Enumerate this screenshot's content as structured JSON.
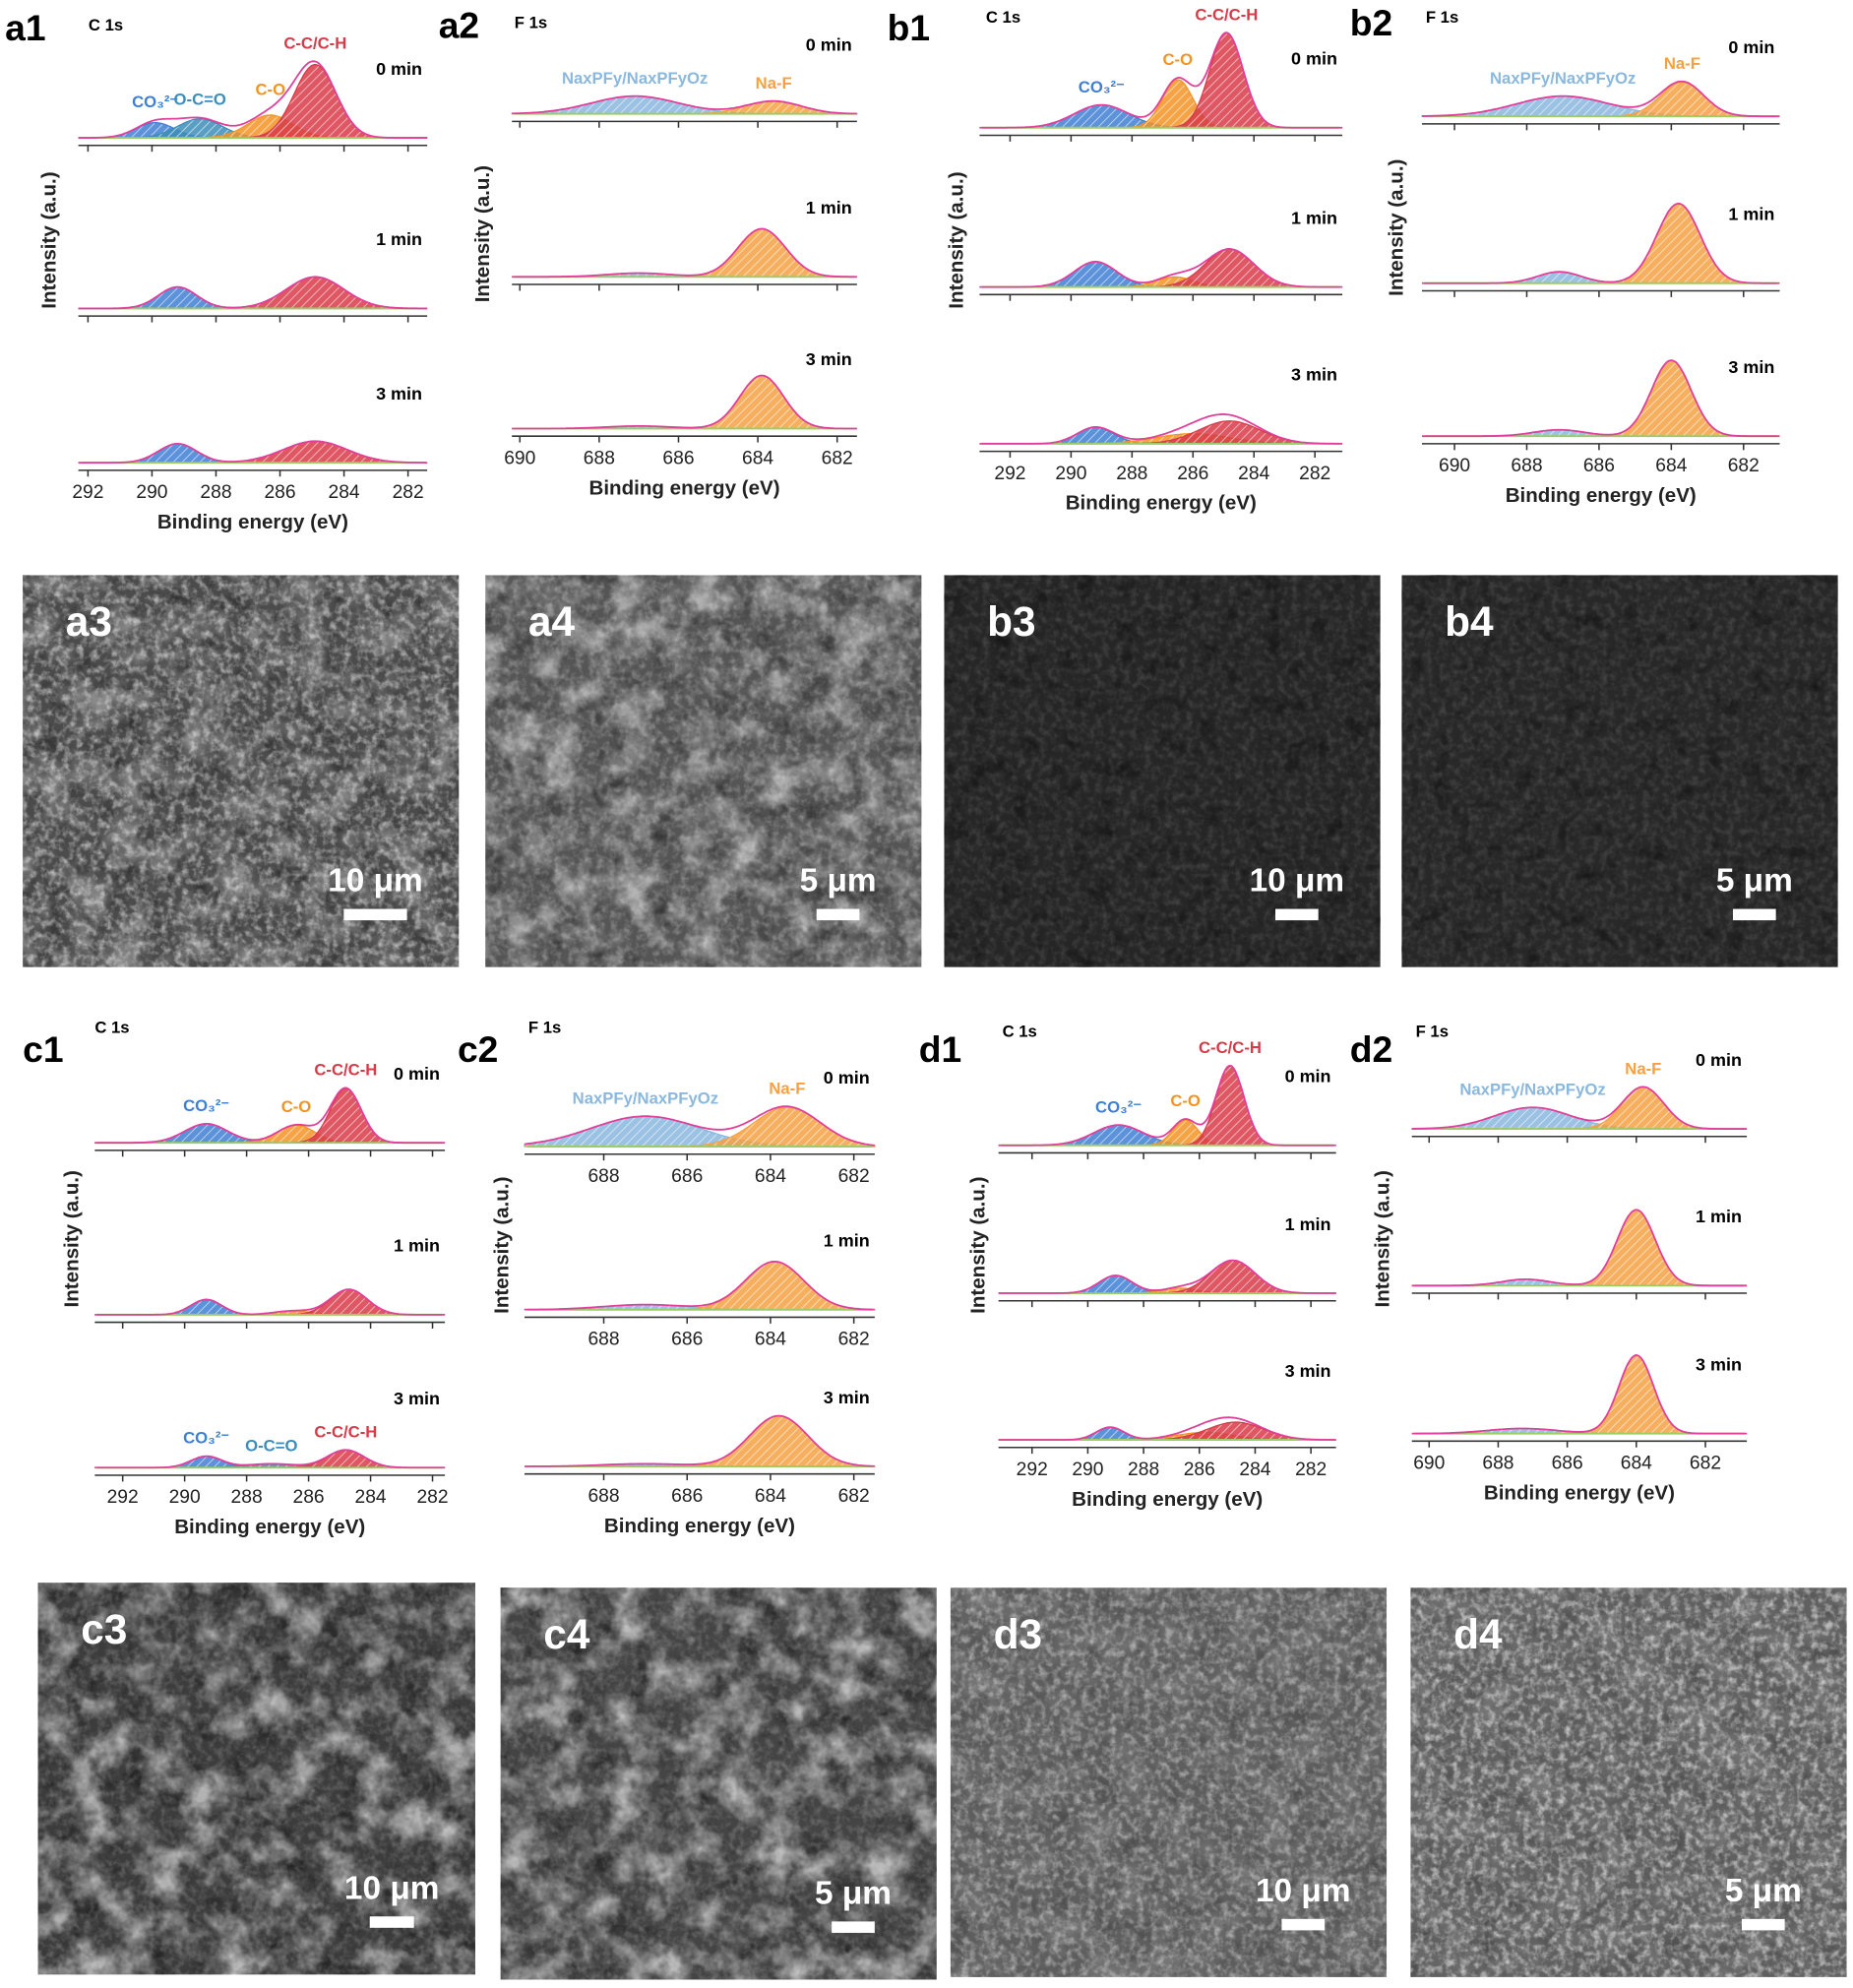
{
  "chart_data": [
    {
      "type": "area",
      "panel_label": "a1",
      "title": "C 1s",
      "x_label": "Binding energy (eV)",
      "y_label": "Intensity (a.u.)",
      "xlim": [
        292.3,
        281.4
      ],
      "xticks": [
        292,
        290,
        288,
        286,
        284,
        282
      ],
      "envelope_color": "#e0409a",
      "baseline_color": "#9ccc65",
      "subplots": [
        {
          "label": "0 min",
          "series": [
            {
              "name": "CO₃²⁻",
              "color": "#3f7fd4",
              "center": 289.9,
              "height": 12,
              "width": 0.6
            },
            {
              "name": "O-C=O",
              "color": "#3d8eb9",
              "center": 288.5,
              "height": 15,
              "width": 0.7
            },
            {
              "name": "C-O",
              "color": "#f39325",
              "center": 286.3,
              "height": 18,
              "width": 0.7
            },
            {
              "name": "C-C/C-H",
              "color": "#d93a48",
              "center": 284.9,
              "height": 58,
              "width": 0.65
            }
          ]
        },
        {
          "label": "1 min",
          "series": [
            {
              "color": "#3f7fd4",
              "center": 289.2,
              "height": 17,
              "width": 0.6
            },
            {
              "color": "#d93a48",
              "center": 284.9,
              "height": 25,
              "width": 0.9
            }
          ]
        },
        {
          "label": "3 min",
          "series": [
            {
              "color": "#3f7fd4",
              "center": 289.2,
              "height": 15,
              "width": 0.6
            },
            {
              "color": "#d93a48",
              "center": 284.9,
              "height": 17,
              "width": 1.0
            }
          ]
        }
      ]
    },
    {
      "type": "area",
      "panel_label": "a2",
      "title": "F 1s",
      "x_label": "Binding energy (eV)",
      "y_label": "Intensity (a.u.)",
      "xlim": [
        690.2,
        681.5
      ],
      "xticks": [
        690,
        688,
        686,
        684,
        682
      ],
      "envelope_color": "#e0409a",
      "baseline_color": "#9ccc65",
      "subplots": [
        {
          "label": "0 min",
          "series": [
            {
              "name": "NaxPFy/NaxPFyOz",
              "color": "#8ab8de",
              "center": 687.1,
              "height": 14,
              "width": 1.1
            },
            {
              "name": "Na-F",
              "color": "#f5a142",
              "center": 683.6,
              "height": 10,
              "width": 0.7
            }
          ]
        },
        {
          "label": "1 min",
          "series": [
            {
              "color": "#8ab8de",
              "center": 687.0,
              "height": 3,
              "width": 0.8
            },
            {
              "color": "#f5a142",
              "center": 683.9,
              "height": 38,
              "width": 0.6
            }
          ]
        },
        {
          "label": "3 min",
          "series": [
            {
              "color": "#8ab8de",
              "center": 687.0,
              "height": 2,
              "width": 0.8
            },
            {
              "color": "#f5a142",
              "center": 683.9,
              "height": 42,
              "width": 0.55
            }
          ]
        }
      ]
    },
    {
      "type": "area",
      "panel_label": "b1",
      "title": "C 1s",
      "x_label": "Binding energy (eV)",
      "y_label": "Intensity (a.u.)",
      "xlim": [
        293.0,
        281.1
      ],
      "xticks": [
        292,
        290,
        288,
        286,
        284,
        282
      ],
      "envelope_color": "#e0409a",
      "baseline_color": "#9ccc65",
      "subplots": [
        {
          "label": "0 min",
          "series": [
            {
              "name": "CO₃²⁻",
              "color": "#3f7fd4",
              "center": 289.0,
              "height": 18,
              "width": 0.9
            },
            {
              "name": "C-O",
              "color": "#f39325",
              "center": 286.5,
              "height": 38,
              "width": 0.5
            },
            {
              "name": "C-C/C-H",
              "color": "#d93a48",
              "center": 284.9,
              "height": 75,
              "width": 0.55
            }
          ]
        },
        {
          "label": "1 min",
          "series": [
            {
              "color": "#3f7fd4",
              "center": 289.2,
              "height": 20,
              "width": 0.7
            },
            {
              "color": "#f39325",
              "center": 286.6,
              "height": 8,
              "width": 0.6
            },
            {
              "color": "#d93a48",
              "center": 284.8,
              "height": 30,
              "width": 0.8
            }
          ]
        },
        {
          "label": "3 min",
          "series": [
            {
              "color": "#3f7fd4",
              "center": 289.2,
              "height": 13,
              "width": 0.6
            },
            {
              "color": "#f39325",
              "center": 286.0,
              "height": 8,
              "width": 1.2
            },
            {
              "color": "#d93a48",
              "center": 284.8,
              "height": 18,
              "width": 1.0
            }
          ]
        }
      ]
    },
    {
      "type": "area",
      "panel_label": "b2",
      "title": "F 1s",
      "x_label": "Binding energy (eV)",
      "y_label": "Intensity (a.u.)",
      "xlim": [
        690.9,
        681.0
      ],
      "xticks": [
        690,
        688,
        686,
        684,
        682
      ],
      "envelope_color": "#e0409a",
      "baseline_color": "#9ccc65",
      "subplots": [
        {
          "label": "0 min",
          "series": [
            {
              "name": "NaxPFy/NaxPFyOz",
              "color": "#8ab8de",
              "center": 687.0,
              "height": 16,
              "width": 1.3
            },
            {
              "name": "Na-F",
              "color": "#f5a142",
              "center": 683.7,
              "height": 27,
              "width": 0.6
            }
          ]
        },
        {
          "label": "1 min",
          "series": [
            {
              "color": "#8ab8de",
              "center": 687.1,
              "height": 9,
              "width": 0.6
            },
            {
              "color": "#f5a142",
              "center": 683.8,
              "height": 63,
              "width": 0.6
            }
          ]
        },
        {
          "label": "3 min",
          "series": [
            {
              "color": "#8ab8de",
              "center": 687.1,
              "height": 5,
              "width": 0.7
            },
            {
              "color": "#f5a142",
              "center": 684.0,
              "height": 60,
              "width": 0.55
            }
          ]
        }
      ]
    },
    {
      "type": "area",
      "panel_label": "c1",
      "title": "C 1s",
      "x_label": "Binding energy (eV)",
      "y_label": "Intensity (a.u.)",
      "xlim": [
        292.9,
        281.6
      ],
      "xticks": [
        292,
        290,
        288,
        286,
        284,
        282
      ],
      "envelope_color": "#e0409a",
      "baseline_color": "#9ccc65",
      "subplots": [
        {
          "label": "0 min",
          "series": [
            {
              "name": "CO₃²⁻",
              "color": "#3f7fd4",
              "center": 289.3,
              "height": 15,
              "width": 0.7
            },
            {
              "name": "C-O",
              "color": "#f39325",
              "center": 286.4,
              "height": 14,
              "width": 0.6
            },
            {
              "name": "C-C/C-H",
              "color": "#d93a48",
              "center": 284.8,
              "height": 43,
              "width": 0.5
            }
          ]
        },
        {
          "label": "1 min",
          "series": [
            {
              "color": "#3f7fd4",
              "center": 289.3,
              "height": 12,
              "width": 0.5
            },
            {
              "color": "#f39325",
              "center": 286.5,
              "height": 3,
              "width": 0.6
            },
            {
              "color": "#d93a48",
              "center": 284.7,
              "height": 20,
              "width": 0.6
            }
          ]
        },
        {
          "label": "3 min",
          "series": [
            {
              "name": "CO₃²⁻",
              "color": "#3f7fd4",
              "center": 289.3,
              "height": 9,
              "width": 0.5
            },
            {
              "name": "O-C=O",
              "color": "#3d8eb9",
              "center": 287.2,
              "height": 3,
              "width": 0.8
            },
            {
              "name": "C-C/C-H",
              "color": "#d93a48",
              "center": 284.8,
              "height": 14,
              "width": 0.6
            }
          ]
        }
      ]
    },
    {
      "type": "area",
      "panel_label": "c2",
      "title": "F 1s",
      "x_label": "Binding energy (eV)",
      "y_label": "Intensity (a.u.)",
      "xlim": [
        689.9,
        681.5
      ],
      "xticks": [
        688,
        686,
        684,
        682
      ],
      "xticks_each": true,
      "envelope_color": "#e0409a",
      "baseline_color": "#9ccc65",
      "subplots": [
        {
          "label": "0 min",
          "series": [
            {
              "name": "NaxPFy/NaxPFyOz",
              "color": "#8ab8de",
              "center": 687.0,
              "height": 24,
              "width": 1.3
            },
            {
              "name": "Na-F",
              "color": "#f5a142",
              "center": 683.6,
              "height": 31,
              "width": 0.8
            }
          ]
        },
        {
          "label": "1 min",
          "series": [
            {
              "color": "#8ab8de",
              "center": 687.0,
              "height": 4,
              "width": 1.0
            },
            {
              "color": "#f5a142",
              "center": 683.9,
              "height": 38,
              "width": 0.7
            }
          ]
        },
        {
          "label": "3 min",
          "series": [
            {
              "color": "#8ab8de",
              "center": 687.0,
              "height": 2,
              "width": 1.0
            },
            {
              "color": "#f5a142",
              "center": 683.8,
              "height": 40,
              "width": 0.7
            }
          ]
        }
      ]
    },
    {
      "type": "area",
      "panel_label": "d1",
      "title": "C 1s",
      "x_label": "Binding energy (eV)",
      "y_label": "Intensity (a.u.)",
      "xlim": [
        293.2,
        281.1
      ],
      "xticks": [
        292,
        290,
        288,
        286,
        284,
        282
      ],
      "envelope_color": "#e0409a",
      "baseline_color": "#9ccc65",
      "subplots": [
        {
          "label": "0 min",
          "series": [
            {
              "name": "CO₃²⁻",
              "color": "#3f7fd4",
              "center": 288.9,
              "height": 16,
              "width": 0.9
            },
            {
              "name": "C-O",
              "color": "#f39325",
              "center": 286.5,
              "height": 20,
              "width": 0.45
            },
            {
              "name": "C-C/C-H",
              "color": "#d93a48",
              "center": 284.9,
              "height": 63,
              "width": 0.5
            }
          ]
        },
        {
          "label": "1 min",
          "series": [
            {
              "color": "#3f7fd4",
              "center": 289.0,
              "height": 14,
              "width": 0.6
            },
            {
              "color": "#f39325",
              "center": 286.7,
              "height": 4,
              "width": 0.6
            },
            {
              "color": "#d93a48",
              "center": 284.8,
              "height": 26,
              "width": 0.8
            }
          ]
        },
        {
          "label": "3 min",
          "series": [
            {
              "color": "#3f7fd4",
              "center": 289.2,
              "height": 10,
              "width": 0.5
            },
            {
              "color": "#f39325",
              "center": 285.8,
              "height": 6,
              "width": 1.0
            },
            {
              "color": "#d93a48",
              "center": 284.7,
              "height": 14,
              "width": 1.0
            }
          ]
        }
      ]
    },
    {
      "type": "area",
      "panel_label": "d2",
      "title": "F 1s",
      "x_label": "Binding energy (eV)",
      "y_label": "Intensity (a.u.)",
      "xlim": [
        690.5,
        680.8
      ],
      "xticks": [
        690,
        688,
        686,
        684,
        682
      ],
      "envelope_color": "#e0409a",
      "baseline_color": "#9ccc65",
      "subplots": [
        {
          "label": "0 min",
          "series": [
            {
              "name": "NaxPFy/NaxPFyOz",
              "color": "#8ab8de",
              "center": 687.0,
              "height": 17,
              "width": 1.1
            },
            {
              "name": "Na-F",
              "color": "#f5a142",
              "center": 683.8,
              "height": 33,
              "width": 0.6
            }
          ]
        },
        {
          "label": "1 min",
          "series": [
            {
              "color": "#8ab8de",
              "center": 687.2,
              "height": 5,
              "width": 0.7
            },
            {
              "color": "#f5a142",
              "center": 684.0,
              "height": 60,
              "width": 0.55
            }
          ]
        },
        {
          "label": "3 min",
          "series": [
            {
              "color": "#8ab8de",
              "center": 687.3,
              "height": 4,
              "width": 1.0
            },
            {
              "color": "#f5a142",
              "center": 684.0,
              "height": 62,
              "width": 0.5
            }
          ]
        }
      ]
    }
  ],
  "images": [
    {
      "label": "a3",
      "scale_bar": "10 μm"
    },
    {
      "label": "a4",
      "scale_bar": "5 μm"
    },
    {
      "label": "b3",
      "scale_bar": "10 μm"
    },
    {
      "label": "b4",
      "scale_bar": "5 μm"
    },
    {
      "label": "c3",
      "scale_bar": "10 μm"
    },
    {
      "label": "c4",
      "scale_bar": "5 μm"
    },
    {
      "label": "d3",
      "scale_bar": "10 μm"
    },
    {
      "label": "d4",
      "scale_bar": "5 μm"
    }
  ]
}
